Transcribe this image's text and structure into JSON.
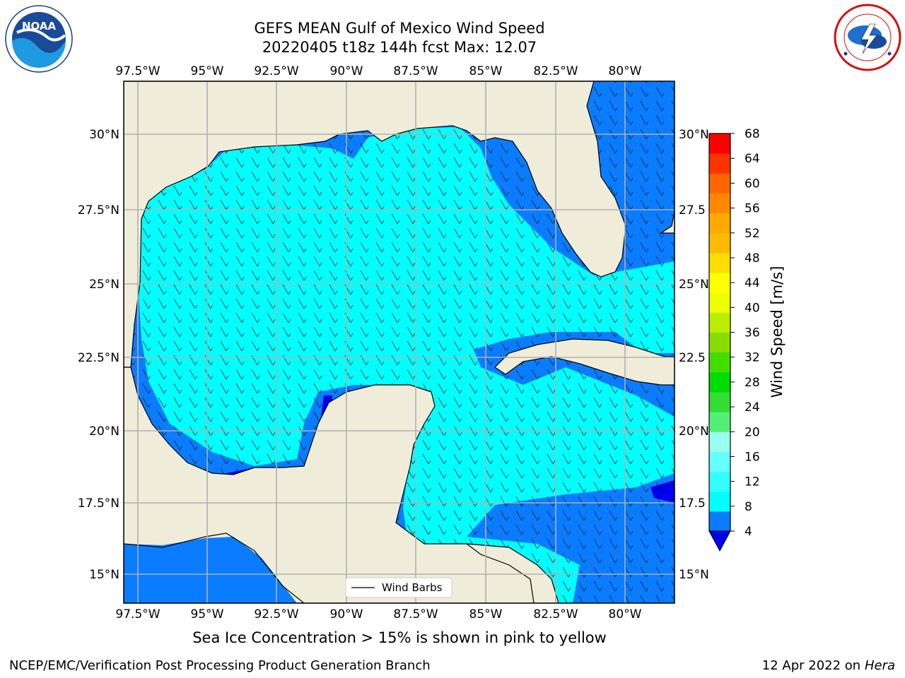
{
  "title_line1": "GEFS MEAN Gulf of Mexico Wind Speed",
  "title_line2": "20220405 t18z 144h fcst   Max: 12.07",
  "lon_ticks": [
    "97.5°W",
    "95°W",
    "92.5°W",
    "90°W",
    "87.5°W",
    "85°W",
    "82.5°W",
    "80°W"
  ],
  "lat_ticks_left": [
    "30°N",
    "27.5°N",
    "25°N",
    "22.5°N",
    "20°N",
    "17.5°N",
    "15°N"
  ],
  "lat_ticks_right": [
    "30°N",
    "27.5",
    "25°N",
    "22.5",
    "20°N",
    "17.5",
    "15°N"
  ],
  "legend_label": "Wind Barbs",
  "colorbar": {
    "label": "Wind Speed [m/s]",
    "ticks": [
      "4",
      "8",
      "12",
      "16",
      "20",
      "24",
      "28",
      "32",
      "36",
      "40",
      "44",
      "48",
      "52",
      "56",
      "60",
      "64",
      "68"
    ],
    "colors": [
      "#0a7cff",
      "#00ffff",
      "#33ffff",
      "#66ffff",
      "#99ffee",
      "#55ee77",
      "#33dd33",
      "#00dd00",
      "#44dd00",
      "#88dd00",
      "#bbee00",
      "#eeff00",
      "#ffff00",
      "#ffdd00",
      "#ffbb00",
      "#ffaa00",
      "#ff8800",
      "#ff6600",
      "#ff3300",
      "#ff0000"
    ],
    "under_color": "#0000ee"
  },
  "caption": "Sea Ice Concentration > 15% is shown in pink to yellow",
  "footer_left": "NCEP/EMC/Verification Post Processing Product Generation Branch",
  "footer_right_date": "12 Apr 2022 on ",
  "footer_right_host": "Hera",
  "noaa_text": "NOAA",
  "colors": {
    "land": "#efedd9",
    "ocean_light": "#00ffff",
    "ocean_mid": "#0a7cff",
    "ocean_dark": "#0000ee",
    "grid": "#b0b0b0"
  }
}
